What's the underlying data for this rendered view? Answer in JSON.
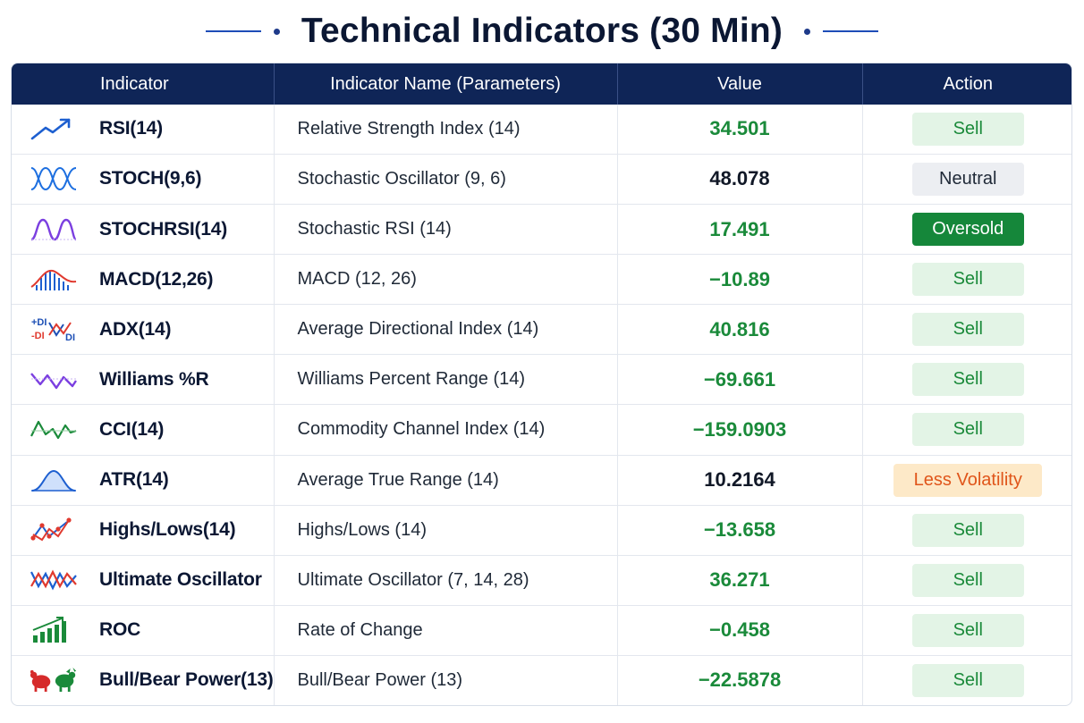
{
  "title": "Technical Indicators (30 Min)",
  "headers": {
    "indicator": "Indicator",
    "name": "Indicator Name (Parameters)",
    "value": "Value",
    "action": "Action"
  },
  "colors": {
    "header_bg": "#0f2557",
    "green": "#1a8a3a",
    "sell_bg": "#e3f4e6",
    "oversold_bg": "#15873a",
    "neutral_bg": "#eceef2",
    "less_vol_bg": "#fde9c8",
    "less_vol_text": "#e0551a"
  },
  "rows": [
    {
      "icon": "trend-up-icon",
      "indicator": "RSI(14)",
      "name": "Relative Strength Index (14)",
      "value": "34.501",
      "value_color": "green",
      "action": "Sell",
      "action_type": "sell"
    },
    {
      "icon": "wave-cross-icon",
      "indicator": "STOCH(9,6)",
      "name": "Stochastic Oscillator (9, 6)",
      "value": "48.078",
      "value_color": "dark",
      "action": "Neutral",
      "action_type": "neutral"
    },
    {
      "icon": "sine-wave-icon",
      "indicator": "STOCHRSI(14)",
      "name": "Stochastic RSI (14)",
      "value": "17.491",
      "value_color": "green",
      "action": "Oversold",
      "action_type": "oversold"
    },
    {
      "icon": "macd-histogram-icon",
      "indicator": "MACD(12,26)",
      "name": "MACD (12, 26)",
      "value": "−10.89",
      "value_color": "green",
      "action": "Sell",
      "action_type": "sell"
    },
    {
      "icon": "adx-di-icon",
      "indicator": "ADX(14)",
      "name": "Average Directional Index (14)",
      "value": "40.816",
      "value_color": "green",
      "action": "Sell",
      "action_type": "sell"
    },
    {
      "icon": "zigzag-icon",
      "indicator": "Williams %R",
      "name": "Williams Percent Range (14)",
      "value": "−69.661",
      "value_color": "green",
      "action": "Sell",
      "action_type": "sell"
    },
    {
      "icon": "cci-wave-icon",
      "indicator": "CCI(14)",
      "name": "Commodity Channel Index (14)",
      "value": "−159.0903",
      "value_color": "green",
      "action": "Sell",
      "action_type": "sell"
    },
    {
      "icon": "bell-curve-icon",
      "indicator": "ATR(14)",
      "name": "Average True Range (14)",
      "value": "10.2164",
      "value_color": "dark",
      "action": "Less Volatility",
      "action_type": "lessvol"
    },
    {
      "icon": "highs-lows-icon",
      "indicator": "Highs/Lows(14)",
      "name": "Highs/Lows (14)",
      "value": "−13.658",
      "value_color": "green",
      "action": "Sell",
      "action_type": "sell"
    },
    {
      "icon": "oscillator-icon",
      "indicator": "Ultimate Oscillator",
      "name": "Ultimate Oscillator (7, 14, 28)",
      "value": "36.271",
      "value_color": "green",
      "action": "Sell",
      "action_type": "sell"
    },
    {
      "icon": "bar-growth-icon",
      "indicator": "ROC",
      "name": "Rate of Change",
      "value": "−0.458",
      "value_color": "green",
      "action": "Sell",
      "action_type": "sell"
    },
    {
      "icon": "bull-bear-icon",
      "indicator": "Bull/Bear Power(13)",
      "name": "Bull/Bear Power (13)",
      "value": "−22.5878",
      "value_color": "green",
      "action": "Sell",
      "action_type": "sell"
    }
  ]
}
